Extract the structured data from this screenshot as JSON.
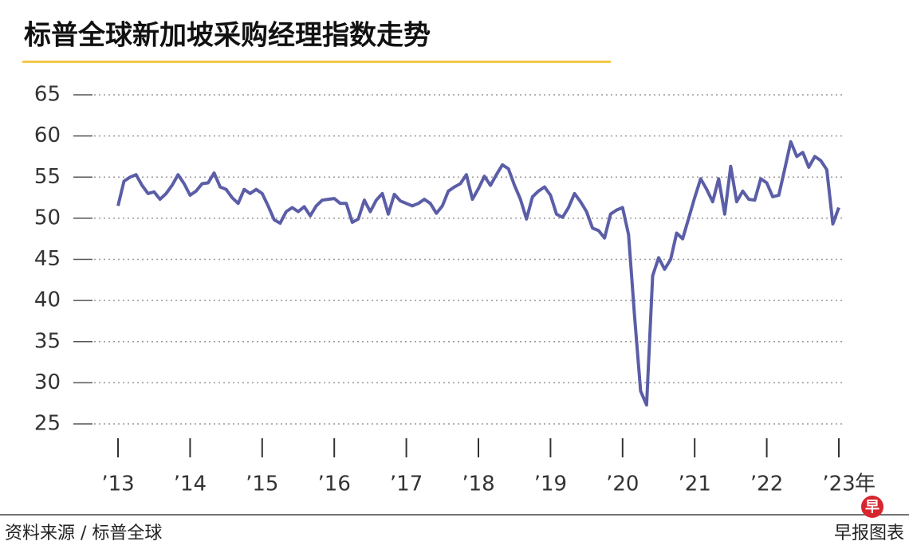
{
  "chart_data": {
    "type": "line",
    "title": "标普全球新加坡采购经理指数走势",
    "x_label": "年",
    "source": "资料来源 / 标普全球",
    "credit": "早报图表",
    "logo_text": "早",
    "x": [
      2013,
      2013.083,
      2013.167,
      2013.25,
      2013.333,
      2013.417,
      2013.5,
      2013.583,
      2013.667,
      2013.75,
      2013.833,
      2013.917,
      2014,
      2014.083,
      2014.167,
      2014.25,
      2014.333,
      2014.417,
      2014.5,
      2014.583,
      2014.667,
      2014.75,
      2014.833,
      2014.917,
      2015,
      2015.083,
      2015.167,
      2015.25,
      2015.333,
      2015.417,
      2015.5,
      2015.583,
      2015.667,
      2015.75,
      2015.833,
      2015.917,
      2016,
      2016.083,
      2016.167,
      2016.25,
      2016.333,
      2016.417,
      2016.5,
      2016.583,
      2016.667,
      2016.75,
      2016.833,
      2016.917,
      2017,
      2017.083,
      2017.167,
      2017.25,
      2017.333,
      2017.417,
      2017.5,
      2017.583,
      2017.667,
      2017.75,
      2017.833,
      2017.917,
      2018,
      2018.083,
      2018.167,
      2018.25,
      2018.333,
      2018.417,
      2018.5,
      2018.583,
      2018.667,
      2018.75,
      2018.833,
      2018.917,
      2019,
      2019.083,
      2019.167,
      2019.25,
      2019.333,
      2019.417,
      2019.5,
      2019.583,
      2019.667,
      2019.75,
      2019.833,
      2019.917,
      2020,
      2020.083,
      2020.167,
      2020.25,
      2020.333,
      2020.417,
      2020.5,
      2020.583,
      2020.667,
      2020.75,
      2020.833,
      2020.917,
      2021,
      2021.083,
      2021.167,
      2021.25,
      2021.333,
      2021.417,
      2021.5,
      2021.583,
      2021.667,
      2021.75,
      2021.833,
      2021.917,
      2022,
      2022.083,
      2022.167,
      2022.25,
      2022.333,
      2022.417,
      2022.5,
      2022.583,
      2022.667,
      2022.75,
      2022.833,
      2022.917,
      2023
    ],
    "series": [
      {
        "color": "#5b5ea6",
        "values": [
          51.5,
          54.5,
          55,
          55.3,
          54,
          53,
          53.2,
          52.3,
          53,
          54,
          55.3,
          54.2,
          52.8,
          53.3,
          54.2,
          54.3,
          55.5,
          53.8,
          53.5,
          52.5,
          51.8,
          53.5,
          53,
          53.5,
          53,
          51.5,
          49.8,
          49.4,
          50.8,
          51.3,
          50.8,
          51.4,
          50.3,
          51.5,
          52.2,
          52.3,
          52.4,
          51.8,
          51.8,
          49.5,
          49.9,
          52.2,
          50.8,
          52.2,
          53,
          50.5,
          52.9,
          52.1,
          51.8,
          51.5,
          51.8,
          52.3,
          51.8,
          50.6,
          51.5,
          53.3,
          53.8,
          54.2,
          55.3,
          52.3,
          53.6,
          55.1,
          54,
          55.3,
          56.5,
          56,
          54,
          52.3,
          49.9,
          52.6,
          53.3,
          53.8,
          52.8,
          50.5,
          50.1,
          51.3,
          53,
          52,
          50.8,
          48.8,
          48.5,
          47.6,
          50.5,
          51,
          51.3,
          48,
          38,
          29,
          27.3,
          43,
          45.2,
          43.8,
          45,
          48.2,
          47.5,
          50,
          52.5,
          54.8,
          53.5,
          52,
          54.8,
          50.5,
          56.3,
          52,
          53.3,
          52.3,
          52.2,
          54.8,
          54.3,
          52.6,
          52.8,
          56,
          59.3,
          57.5,
          58,
          56.2,
          57.5,
          57,
          55.9,
          49.3,
          51.3
        ]
      }
    ],
    "xlim": [
      2013,
      2023
    ],
    "xticks": [
      {
        "value": 2013,
        "label": "’13"
      },
      {
        "value": 2014,
        "label": "’14"
      },
      {
        "value": 2015,
        "label": "’15"
      },
      {
        "value": 2016,
        "label": "’16"
      },
      {
        "value": 2017,
        "label": "’17"
      },
      {
        "value": 2018,
        "label": "’18"
      },
      {
        "value": 2019,
        "label": "’19"
      },
      {
        "value": 2020,
        "label": "’20"
      },
      {
        "value": 2021,
        "label": "’21"
      },
      {
        "value": 2022,
        "label": "’22"
      },
      {
        "value": 2023,
        "label": "’23"
      }
    ],
    "ylim": [
      25,
      65
    ],
    "yticks": [
      25,
      30,
      35,
      40,
      45,
      50,
      55,
      60,
      65
    ],
    "grid": true
  }
}
